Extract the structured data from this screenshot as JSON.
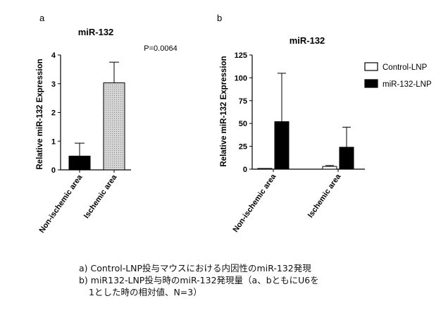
{
  "chart_data": [
    {
      "panel": "a",
      "type": "bar",
      "title": "miR-132",
      "ylabel": "Relative miR-132 Expression",
      "categories": [
        "Non-ischemic area",
        "Ischemic area"
      ],
      "values": [
        0.48,
        3.03
      ],
      "error": [
        0.45,
        0.72
      ],
      "ylim": [
        0,
        4
      ],
      "yticks": [
        "0",
        "1",
        "2",
        "3",
        "4"
      ],
      "annotation": "P=0.0064",
      "bar_fills": [
        "#000000",
        "#c8c8c8"
      ],
      "grid": false
    },
    {
      "panel": "b",
      "type": "bar",
      "title": "miR-132",
      "ylabel": "Relative miR-132 Expression",
      "categories": [
        "Non-ischemic area",
        "Ischemic area"
      ],
      "series": [
        {
          "name": "Control-LNP",
          "values": [
            0.8,
            3.0
          ],
          "error": [
            0,
            1.0
          ],
          "color": "#ffffff"
        },
        {
          "name": "miR-132-LNP",
          "values": [
            52,
            24
          ],
          "error": [
            53,
            22
          ],
          "color": "#000000"
        }
      ],
      "ylim": [
        0,
        125
      ],
      "yticks": [
        "0",
        "25",
        "50",
        "75",
        "100",
        "125"
      ],
      "legend": "right",
      "grid": false
    }
  ],
  "caption": {
    "line1": "a) Control-LNP投与マウスにおける内因性のmiR-132発現",
    "line2": "b) miR132-LNP投与時のmiR-132発現量（a、bともにU6を",
    "line3": "1とした時の相対値、N=3）"
  }
}
